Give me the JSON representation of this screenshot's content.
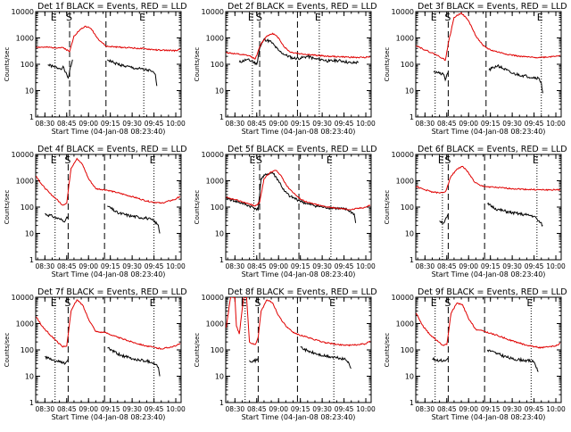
{
  "figure": {
    "panel_titles": [
      "Det 1f BLACK = Events, RED = LLD",
      "Det 2f BLACK = Events, RED = LLD",
      "Det 3f BLACK = Events, RED = LLD",
      "Det 4f BLACK = Events, RED = LLD",
      "Det 5f BLACK = Events, RED = LLD",
      "Det 6f BLACK = Events, RED = LLD",
      "Det 7f BLACK = Events, RED = LLD",
      "Det 8f BLACK = Events, RED = LLD",
      "Det 9f BLACK = Events, RED = LLD"
    ],
    "xlabel": "Start Time (04-Jan-08 08:23:40)",
    "ylabel": "Counts/sec",
    "x_tick_labels": [
      "08:30",
      "08:45",
      "09:00",
      "09:15",
      "09:30",
      "09:45",
      "10:00"
    ],
    "y_tick_labels": [
      "1",
      "10",
      "100",
      "1000",
      "10000"
    ],
    "marker_labels": {
      "left": "E",
      "middle": "S",
      "right": "E"
    },
    "colors": {
      "events": "#000000",
      "lld": "#e00000",
      "frame": "#000000",
      "background": "#ffffff"
    }
  },
  "chart_data": [
    {
      "type": "line",
      "title": "Det 1f BLACK = Events, RED = LLD",
      "xlabel": "Start Time (04-Jan-08 08:23:40)",
      "ylabel": "Counts/sec",
      "yscale": "log",
      "ylim": [
        1,
        10000
      ],
      "xlim": [
        "08:23:40",
        "10:03:40"
      ],
      "vlines_dotted": [
        "08:37",
        "09:38"
      ],
      "vlines_dashed": [
        "08:47",
        "09:12"
      ],
      "series": [
        {
          "name": "BLACK = Events",
          "x": [
            "08:32",
            "08:36",
            "08:40",
            "08:43",
            "08:44",
            "08:46",
            "08:49",
            "09:12",
            "09:13",
            "09:18",
            "09:25",
            "09:32",
            "09:39",
            "09:43",
            "09:46",
            "09:47"
          ],
          "values": [
            95,
            80,
            70,
            75,
            50,
            30,
            150,
            null,
            150,
            110,
            85,
            70,
            62,
            55,
            40,
            15
          ]
        },
        {
          "name": "RED = LLD",
          "x": [
            "08:24",
            "08:30",
            "08:37",
            "08:43",
            "08:47",
            "08:50",
            "08:54",
            "08:58",
            "09:02",
            "09:06",
            "09:12",
            "09:20",
            "09:30",
            "09:40",
            "09:50",
            "10:00",
            "10:03"
          ],
          "values": [
            450,
            440,
            430,
            420,
            300,
            1200,
            2000,
            2800,
            2200,
            1000,
            480,
            450,
            420,
            380,
            340,
            330,
            380
          ]
        }
      ]
    },
    {
      "type": "line",
      "title": "Det 2f BLACK = Events, RED = LLD",
      "xlabel": "Start Time (04-Jan-08 08:23:40)",
      "ylabel": "Counts/sec",
      "yscale": "log",
      "ylim": [
        1,
        10000
      ],
      "xlim": [
        "08:23:40",
        "10:03:40"
      ],
      "vlines_dotted": [
        "08:42",
        "09:28"
      ],
      "vlines_dashed": [
        "08:47",
        "09:13"
      ],
      "series": [
        {
          "name": "BLACK = Events",
          "x": [
            "08:33",
            "08:38",
            "08:42",
            "08:45",
            "08:47",
            "08:50",
            "08:55",
            "09:00",
            "09:05",
            "09:10",
            "09:15",
            "09:20",
            "09:25",
            "09:30",
            "09:35",
            "09:40",
            "09:45",
            "09:50",
            "09:55"
          ],
          "values": [
            120,
            150,
            130,
            100,
            400,
            900,
            700,
            330,
            220,
            170,
            170,
            200,
            160,
            150,
            130,
            140,
            130,
            110,
            120
          ]
        },
        {
          "name": "RED = LLD",
          "x": [
            "08:24",
            "08:30",
            "08:35",
            "08:40",
            "08:44",
            "08:48",
            "08:52",
            "08:56",
            "09:00",
            "09:04",
            "09:08",
            "09:15",
            "09:25",
            "09:35",
            "09:45",
            "09:55",
            "10:03"
          ],
          "values": [
            280,
            250,
            230,
            210,
            160,
            600,
            1200,
            1500,
            1000,
            450,
            290,
            250,
            220,
            200,
            190,
            180,
            190
          ]
        }
      ]
    },
    {
      "type": "line",
      "title": "Det 3f BLACK = Events, RED = LLD",
      "xlabel": "Start Time (04-Jan-08 08:23:40)",
      "ylabel": "Counts/sec",
      "yscale": "log",
      "ylim": [
        1,
        10000
      ],
      "xlim": [
        "08:23:40",
        "10:03:40"
      ],
      "vlines_dotted": [
        "08:37",
        "09:50"
      ],
      "vlines_dashed": [
        "08:46",
        "09:12"
      ],
      "series": [
        {
          "name": "BLACK = Events",
          "x": [
            "08:36",
            "08:40",
            "08:43",
            "08:44",
            "08:45",
            "08:46",
            "09:13",
            "09:14",
            "09:20",
            "09:30",
            "09:40",
            "09:48",
            "09:50",
            "09:51"
          ],
          "values": [
            55,
            45,
            40,
            25,
            40,
            50,
            null,
            60,
            90,
            45,
            35,
            30,
            20,
            8
          ]
        },
        {
          "name": "RED = LLD",
          "x": [
            "08:24",
            "08:30",
            "08:37",
            "08:42",
            "08:44",
            "08:46",
            "08:50",
            "08:55",
            "09:00",
            "09:05",
            "09:10",
            "09:15",
            "09:25",
            "09:35",
            "09:45",
            "09:55",
            "10:03"
          ],
          "values": [
            520,
            350,
            240,
            170,
            140,
            600,
            6000,
            9000,
            4500,
            1200,
            500,
            350,
            250,
            200,
            180,
            190,
            220
          ]
        }
      ]
    },
    {
      "type": "line",
      "title": "Det 4f BLACK = Events, RED = LLD",
      "xlabel": "Start Time (04-Jan-08 08:23:40)",
      "ylabel": "Counts/sec",
      "yscale": "log",
      "ylim": [
        1,
        10000
      ],
      "xlim": [
        "08:23:40",
        "10:03:40"
      ],
      "vlines_dotted": [
        "08:37",
        "09:45"
      ],
      "vlines_dashed": [
        "08:46",
        "09:11"
      ],
      "series": [
        {
          "name": "BLACK = Events",
          "x": [
            "08:30",
            "08:35",
            "08:40",
            "08:44",
            "08:46",
            "09:12",
            "09:13",
            "09:20",
            "09:30",
            "09:40",
            "09:45",
            "09:48",
            "09:49"
          ],
          "values": [
            55,
            45,
            35,
            30,
            45,
            null,
            110,
            60,
            45,
            38,
            30,
            20,
            10
          ]
        },
        {
          "name": "RED = LLD",
          "x": [
            "08:24",
            "08:28",
            "08:33",
            "08:38",
            "08:42",
            "08:45",
            "08:48",
            "08:52",
            "08:56",
            "09:00",
            "09:05",
            "09:12",
            "09:20",
            "09:30",
            "09:40",
            "09:50",
            "10:00",
            "10:03"
          ],
          "values": [
            1500,
            700,
            350,
            200,
            120,
            140,
            3000,
            7000,
            4000,
            1200,
            500,
            450,
            350,
            250,
            170,
            140,
            200,
            260
          ]
        }
      ]
    },
    {
      "type": "line",
      "title": "Det 5f BLACK = Events, RED = LLD",
      "xlabel": "Start Time (04-Jan-08 08:23:40)",
      "ylabel": "Counts/sec",
      "yscale": "log",
      "ylim": [
        1,
        10000
      ],
      "xlim": [
        "08:23:40",
        "10:03:40"
      ],
      "vlines_dotted": [
        "08:43",
        "09:36"
      ],
      "vlines_dashed": [
        "08:47",
        "09:14"
      ],
      "series": [
        {
          "name": "BLACK = Events",
          "x": [
            "08:24",
            "08:30",
            "08:35",
            "08:40",
            "08:44",
            "08:46",
            "08:48",
            "08:52",
            "08:56",
            "09:00",
            "09:04",
            "09:08",
            "09:14",
            "09:20",
            "09:30",
            "09:40",
            "09:47",
            "09:52",
            "09:53"
          ],
          "values": [
            220,
            170,
            140,
            110,
            90,
            80,
            1200,
            1800,
            2000,
            1000,
            400,
            250,
            180,
            130,
            100,
            90,
            80,
            55,
            25
          ]
        },
        {
          "name": "RED = LLD",
          "x": [
            "08:24",
            "08:30",
            "08:35",
            "08:40",
            "08:44",
            "08:47",
            "08:50",
            "08:54",
            "08:58",
            "09:02",
            "09:06",
            "09:14",
            "09:20",
            "09:30",
            "09:40",
            "09:50",
            "10:00",
            "10:03"
          ],
          "values": [
            230,
            190,
            160,
            130,
            110,
            150,
            1200,
            2000,
            2500,
            1500,
            600,
            220,
            150,
            110,
            90,
            80,
            100,
            120
          ]
        }
      ]
    },
    {
      "type": "line",
      "title": "Det 6f BLACK = Events, RED = LLD",
      "xlabel": "Start Time (04-Jan-08 08:23:40)",
      "ylabel": "Counts/sec",
      "yscale": "log",
      "ylim": [
        1,
        10000
      ],
      "xlim": [
        "08:23:40",
        "10:03:40"
      ],
      "vlines_dotted": [
        "08:42",
        "09:47"
      ],
      "vlines_dashed": [
        "08:46",
        "09:11"
      ],
      "series": [
        {
          "name": "BLACK = Events",
          "x": [
            "08:40",
            "08:43",
            "08:45",
            "08:46",
            "09:12",
            "09:13",
            "09:20",
            "09:30",
            "09:40",
            "09:45",
            "09:48",
            "09:51"
          ],
          "values": [
            30,
            25,
            40,
            55,
            null,
            130,
            80,
            60,
            50,
            45,
            30,
            20
          ]
        },
        {
          "name": "RED = LLD",
          "x": [
            "08:24",
            "08:30",
            "08:35",
            "08:40",
            "08:44",
            "08:48",
            "08:52",
            "08:56",
            "09:00",
            "09:04",
            "09:08",
            "09:12",
            "09:20",
            "09:30",
            "09:40",
            "09:50",
            "10:00",
            "10:03"
          ],
          "values": [
            600,
            450,
            380,
            340,
            380,
            1500,
            2800,
            3500,
            2000,
            900,
            650,
            600,
            550,
            500,
            470,
            450,
            450,
            460
          ]
        }
      ]
    },
    {
      "type": "line",
      "title": "Det 7f BLACK = Events, RED = LLD",
      "xlabel": "Start Time (04-Jan-08 08:23:40)",
      "ylabel": "Counts/sec",
      "yscale": "log",
      "ylim": [
        1,
        10000
      ],
      "xlim": [
        "08:23:40",
        "10:03:40"
      ],
      "vlines_dotted": [
        "08:37",
        "09:45"
      ],
      "vlines_dashed": [
        "08:46",
        "09:11"
      ],
      "series": [
        {
          "name": "BLACK = Events",
          "x": [
            "08:30",
            "08:35",
            "08:40",
            "08:44",
            "08:46",
            "09:12",
            "09:13",
            "09:20",
            "09:30",
            "09:40",
            "09:45",
            "09:48",
            "09:49"
          ],
          "values": [
            55,
            40,
            35,
            30,
            45,
            null,
            120,
            70,
            45,
            38,
            32,
            22,
            10
          ]
        },
        {
          "name": "RED = LLD",
          "x": [
            "08:24",
            "08:28",
            "08:33",
            "08:38",
            "08:42",
            "08:45",
            "08:48",
            "08:52",
            "08:56",
            "09:00",
            "09:05",
            "09:12",
            "09:20",
            "09:30",
            "09:40",
            "09:50",
            "10:00",
            "10:03"
          ],
          "values": [
            1800,
            800,
            400,
            220,
            130,
            140,
            3000,
            8000,
            5000,
            1500,
            500,
            450,
            300,
            200,
            140,
            110,
            140,
            180
          ]
        }
      ]
    },
    {
      "type": "line",
      "title": "Det 8f BLACK = Events, RED = LLD",
      "xlabel": "Start Time (04-Jan-08 08:23:40)",
      "ylabel": "Counts/sec",
      "yscale": "log",
      "ylim": [
        1,
        10000
      ],
      "xlim": [
        "08:23:40",
        "10:03:40"
      ],
      "vlines_dotted": [
        "08:37",
        "09:38"
      ],
      "vlines_dashed": [
        "08:46",
        "09:13"
      ],
      "series": [
        {
          "name": "BLACK = Events",
          "x": [
            "08:40",
            "08:43",
            "08:45",
            "08:46",
            "09:14",
            "09:15",
            "09:20",
            "09:30",
            "09:40",
            "09:45",
            "09:48",
            "09:50"
          ],
          "values": [
            40,
            38,
            40,
            50,
            null,
            130,
            90,
            60,
            50,
            45,
            35,
            20
          ]
        },
        {
          "name": "RED = LLD",
          "x": [
            "08:24",
            "08:27",
            "08:30",
            "08:31",
            "08:33",
            "08:36",
            "08:38",
            "08:40",
            "08:42",
            "08:44",
            "08:46",
            "08:48",
            "08:52",
            "08:56",
            "09:00",
            "09:05",
            "09:10",
            "09:14",
            "09:20",
            "09:30",
            "09:40",
            "09:50",
            "10:00",
            "10:03"
          ],
          "values": [
            700,
            10000,
            10000,
            800,
            400,
            10000,
            10000,
            200,
            170,
            160,
            300,
            3000,
            8000,
            6000,
            2000,
            800,
            450,
            380,
            300,
            200,
            160,
            150,
            170,
            220
          ]
        }
      ]
    },
    {
      "type": "line",
      "title": "Det 9f BLACK = Events, RED = LLD",
      "xlabel": "Start Time (04-Jan-08 08:23:40)",
      "ylabel": "Counts/sec",
      "yscale": "log",
      "ylim": [
        1,
        10000
      ],
      "xlim": [
        "08:23:40",
        "10:03:40"
      ],
      "vlines_dotted": [
        "08:37",
        "09:43"
      ],
      "vlines_dashed": [
        "08:46",
        "09:11"
      ],
      "series": [
        {
          "name": "BLACK = Events",
          "x": [
            "08:35",
            "08:40",
            "08:44",
            "08:46",
            "09:12",
            "09:13",
            "09:20",
            "09:30",
            "09:40",
            "09:45",
            "09:48"
          ],
          "values": [
            45,
            40,
            38,
            50,
            null,
            100,
            70,
            45,
            40,
            35,
            15
          ]
        },
        {
          "name": "RED = LLD",
          "x": [
            "08:24",
            "08:28",
            "08:33",
            "08:38",
            "08:42",
            "08:45",
            "08:48",
            "08:52",
            "08:56",
            "09:00",
            "09:05",
            "09:11",
            "09:20",
            "09:30",
            "09:40",
            "09:50",
            "10:00",
            "10:03"
          ],
          "values": [
            2500,
            900,
            400,
            230,
            150,
            160,
            2500,
            6000,
            5000,
            1500,
            600,
            500,
            350,
            220,
            150,
            120,
            140,
            180
          ]
        }
      ]
    }
  ]
}
